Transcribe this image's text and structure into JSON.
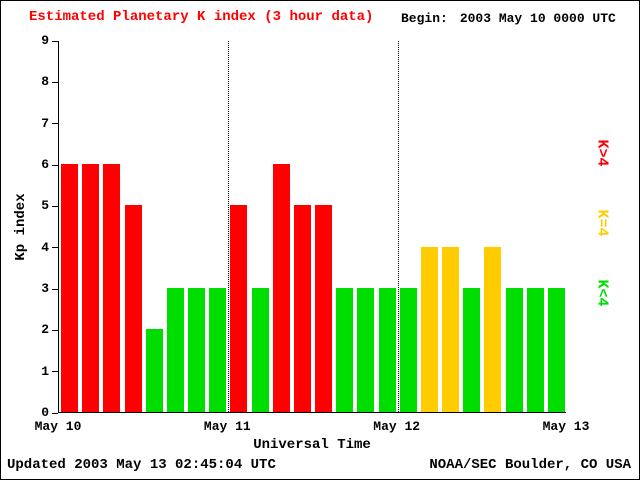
{
  "header": {
    "title": "Estimated Planetary K index (3 hour data)",
    "title_color": "#ff0000",
    "begin_label": "Begin:",
    "begin_value": "2003 May 10 0000 UTC"
  },
  "footer": {
    "updated": "Updated 2003 May 13 02:45:04 UTC",
    "source": "NOAA/SEC Boulder, CO USA"
  },
  "legend": [
    {
      "label": "K>4",
      "color": "#ff0000"
    },
    {
      "label": "K=4",
      "color": "#ffcc00"
    },
    {
      "label": "K<4",
      "color": "#00dd00"
    }
  ],
  "chart_data": {
    "type": "bar",
    "title": "Estimated Planetary K index (3 hour data)",
    "xlabel": "Universal Time",
    "ylabel": "Kp index",
    "ylim": [
      0,
      9
    ],
    "yticks": [
      0,
      1,
      2,
      3,
      4,
      5,
      6,
      7,
      8,
      9
    ],
    "xticks": [
      "May 10",
      "May 11",
      "May 12",
      "May 13"
    ],
    "bin_hours": 3,
    "bins_per_day": 8,
    "values": [
      6,
      6,
      6,
      5,
      2,
      3,
      3,
      3,
      5,
      3,
      6,
      5,
      5,
      3,
      3,
      3,
      3,
      4,
      4,
      3,
      4,
      3,
      3,
      3
    ],
    "colors": {
      "lt4": "#00dd00",
      "eq4": "#ffcc00",
      "gt4": "#ff0000"
    },
    "grid": "dotted vertical lines at day boundaries",
    "legend_position": "right"
  }
}
